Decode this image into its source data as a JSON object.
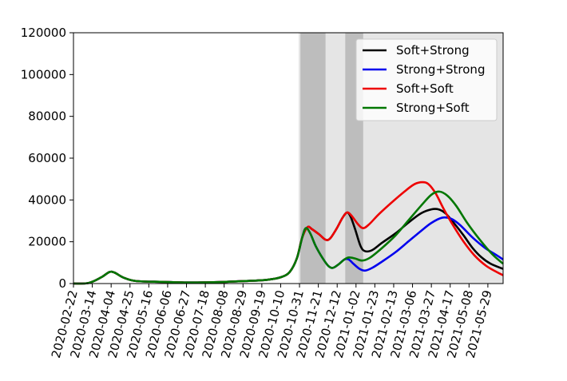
{
  "chart_data": {
    "type": "line",
    "title": "",
    "xlabel": "",
    "ylabel": "",
    "ylim": [
      0,
      120000
    ],
    "yticks": [
      0,
      20000,
      40000,
      60000,
      80000,
      100000,
      120000
    ],
    "xlim": [
      "2020-02-22",
      "2021-06-15"
    ],
    "xticks": [
      "2020-02-22",
      "2020-03-14",
      "2020-04-04",
      "2020-04-25",
      "2020-05-16",
      "2020-06-06",
      "2020-06-27",
      "2020-07-18",
      "2020-08-08",
      "2020-08-29",
      "2020-09-19",
      "2020-10-10",
      "2020-10-31",
      "2020-11-21",
      "2020-12-12",
      "2021-01-02",
      "2021-01-23",
      "2021-02-13",
      "2021-03-06",
      "2021-03-27",
      "2021-04-17",
      "2021-05-08",
      "2021-05-29"
    ],
    "grid": false,
    "legend_position": "top-right",
    "shaded_regions": [
      {
        "start": "2020-10-30",
        "end": "2021-06-15",
        "color": "#e5e5e5"
      },
      {
        "start": "2020-11-01",
        "end": "2020-11-29",
        "color": "#bdbdbd"
      },
      {
        "start": "2020-12-21",
        "end": "2021-01-10",
        "color": "#bdbdbd"
      }
    ],
    "series": [
      {
        "name": "Soft+Strong",
        "color": "#000000",
        "points": [
          [
            "2020-02-22",
            0
          ],
          [
            "2020-03-10",
            300
          ],
          [
            "2020-03-24",
            3000
          ],
          [
            "2020-04-02",
            5500
          ],
          [
            "2020-04-08",
            5200
          ],
          [
            "2020-04-18",
            2800
          ],
          [
            "2020-05-02",
            1200
          ],
          [
            "2020-06-01",
            800
          ],
          [
            "2020-07-01",
            500
          ],
          [
            "2020-08-01",
            700
          ],
          [
            "2020-09-01",
            1200
          ],
          [
            "2020-09-25",
            1800
          ],
          [
            "2020-10-10",
            3000
          ],
          [
            "2020-10-20",
            5500
          ],
          [
            "2020-10-28",
            12000
          ],
          [
            "2020-11-03",
            22000
          ],
          [
            "2020-11-09",
            27000
          ],
          [
            "2020-11-14",
            26000
          ],
          [
            "2020-11-22",
            23500
          ],
          [
            "2020-11-29",
            21000
          ],
          [
            "2020-12-04",
            21500
          ],
          [
            "2020-12-11",
            26000
          ],
          [
            "2020-12-18",
            31500
          ],
          [
            "2020-12-23",
            34000
          ],
          [
            "2020-12-27",
            32000
          ],
          [
            "2021-01-01",
            26000
          ],
          [
            "2021-01-07",
            18000
          ],
          [
            "2021-01-12",
            15500
          ],
          [
            "2021-01-20",
            16000
          ],
          [
            "2021-01-31",
            19500
          ],
          [
            "2021-02-15",
            24000
          ],
          [
            "2021-03-01",
            29000
          ],
          [
            "2021-03-15",
            33500
          ],
          [
            "2021-03-27",
            35500
          ],
          [
            "2021-04-04",
            35500
          ],
          [
            "2021-04-12",
            33500
          ],
          [
            "2021-04-22",
            28500
          ],
          [
            "2021-05-02",
            23000
          ],
          [
            "2021-05-12",
            17000
          ],
          [
            "2021-05-22",
            12500
          ],
          [
            "2021-06-01",
            9500
          ],
          [
            "2021-06-15",
            7000
          ]
        ]
      },
      {
        "name": "Strong+Strong",
        "color": "#0000ee",
        "points": [
          [
            "2020-02-22",
            0
          ],
          [
            "2020-03-10",
            300
          ],
          [
            "2020-03-24",
            3000
          ],
          [
            "2020-04-02",
            5500
          ],
          [
            "2020-04-08",
            5200
          ],
          [
            "2020-04-18",
            2800
          ],
          [
            "2020-05-02",
            1200
          ],
          [
            "2020-06-01",
            800
          ],
          [
            "2020-07-01",
            500
          ],
          [
            "2020-08-01",
            700
          ],
          [
            "2020-09-01",
            1200
          ],
          [
            "2020-09-25",
            1800
          ],
          [
            "2020-10-10",
            3000
          ],
          [
            "2020-10-20",
            5500
          ],
          [
            "2020-10-28",
            12000
          ],
          [
            "2020-11-03",
            22000
          ],
          [
            "2020-11-07",
            26500
          ],
          [
            "2020-11-12",
            24000
          ],
          [
            "2020-11-18",
            18000
          ],
          [
            "2020-11-26",
            12000
          ],
          [
            "2020-12-02",
            8500
          ],
          [
            "2020-12-07",
            7500
          ],
          [
            "2020-12-13",
            9000
          ],
          [
            "2020-12-20",
            11500
          ],
          [
            "2020-12-25",
            11500
          ],
          [
            "2020-12-30",
            9500
          ],
          [
            "2021-01-06",
            7000
          ],
          [
            "2021-01-12",
            6200
          ],
          [
            "2021-01-20",
            7500
          ],
          [
            "2021-01-31",
            10500
          ],
          [
            "2021-02-15",
            15000
          ],
          [
            "2021-03-01",
            20000
          ],
          [
            "2021-03-15",
            25000
          ],
          [
            "2021-03-27",
            29000
          ],
          [
            "2021-04-08",
            31500
          ],
          [
            "2021-04-18",
            31000
          ],
          [
            "2021-04-28",
            28000
          ],
          [
            "2021-05-12",
            22000
          ],
          [
            "2021-05-26",
            17000
          ],
          [
            "2021-06-08",
            13500
          ],
          [
            "2021-06-15",
            11500
          ]
        ]
      },
      {
        "name": "Soft+Soft",
        "color": "#ee0000",
        "points": [
          [
            "2020-02-22",
            0
          ],
          [
            "2020-03-10",
            300
          ],
          [
            "2020-03-24",
            3000
          ],
          [
            "2020-04-02",
            5500
          ],
          [
            "2020-04-08",
            5200
          ],
          [
            "2020-04-18",
            2800
          ],
          [
            "2020-05-02",
            1200
          ],
          [
            "2020-06-01",
            800
          ],
          [
            "2020-07-01",
            500
          ],
          [
            "2020-08-01",
            700
          ],
          [
            "2020-09-01",
            1200
          ],
          [
            "2020-09-25",
            1800
          ],
          [
            "2020-10-10",
            3000
          ],
          [
            "2020-10-20",
            5500
          ],
          [
            "2020-10-28",
            12000
          ],
          [
            "2020-11-03",
            22000
          ],
          [
            "2020-11-09",
            27000
          ],
          [
            "2020-11-14",
            26000
          ],
          [
            "2020-11-22",
            23500
          ],
          [
            "2020-11-29",
            21000
          ],
          [
            "2020-12-04",
            21500
          ],
          [
            "2020-12-11",
            26000
          ],
          [
            "2020-12-18",
            31500
          ],
          [
            "2020-12-23",
            34000
          ],
          [
            "2020-12-28",
            32500
          ],
          [
            "2021-01-04",
            28500
          ],
          [
            "2021-01-10",
            26500
          ],
          [
            "2021-01-17",
            28500
          ],
          [
            "2021-01-27",
            33000
          ],
          [
            "2021-02-10",
            38500
          ],
          [
            "2021-02-25",
            44000
          ],
          [
            "2021-03-08",
            47500
          ],
          [
            "2021-03-17",
            48500
          ],
          [
            "2021-03-24",
            47500
          ],
          [
            "2021-04-01",
            43000
          ],
          [
            "2021-04-10",
            35500
          ],
          [
            "2021-04-20",
            28000
          ],
          [
            "2021-05-02",
            20000
          ],
          [
            "2021-05-14",
            13500
          ],
          [
            "2021-05-27",
            8500
          ],
          [
            "2021-06-08",
            5500
          ],
          [
            "2021-06-15",
            4000
          ]
        ]
      },
      {
        "name": "Strong+Soft",
        "color": "#007700",
        "points": [
          [
            "2020-02-22",
            0
          ],
          [
            "2020-03-10",
            300
          ],
          [
            "2020-03-24",
            3000
          ],
          [
            "2020-04-02",
            5500
          ],
          [
            "2020-04-08",
            5200
          ],
          [
            "2020-04-18",
            2800
          ],
          [
            "2020-05-02",
            1200
          ],
          [
            "2020-06-01",
            800
          ],
          [
            "2020-07-01",
            500
          ],
          [
            "2020-08-01",
            700
          ],
          [
            "2020-09-01",
            1200
          ],
          [
            "2020-09-25",
            1800
          ],
          [
            "2020-10-10",
            3000
          ],
          [
            "2020-10-20",
            5500
          ],
          [
            "2020-10-28",
            12000
          ],
          [
            "2020-11-03",
            22000
          ],
          [
            "2020-11-07",
            26500
          ],
          [
            "2020-11-12",
            24000
          ],
          [
            "2020-11-18",
            18000
          ],
          [
            "2020-11-26",
            12000
          ],
          [
            "2020-12-02",
            8500
          ],
          [
            "2020-12-07",
            7500
          ],
          [
            "2020-12-13",
            9000
          ],
          [
            "2020-12-20",
            11500
          ],
          [
            "2020-12-25",
            12500
          ],
          [
            "2021-01-01",
            12000
          ],
          [
            "2021-01-09",
            11000
          ],
          [
            "2021-01-18",
            12500
          ],
          [
            "2021-01-31",
            17000
          ],
          [
            "2021-02-15",
            23000
          ],
          [
            "2021-03-01",
            30000
          ],
          [
            "2021-03-15",
            37000
          ],
          [
            "2021-03-27",
            42500
          ],
          [
            "2021-04-05",
            44000
          ],
          [
            "2021-04-14",
            42000
          ],
          [
            "2021-04-24",
            37000
          ],
          [
            "2021-05-06",
            29000
          ],
          [
            "2021-05-20",
            21000
          ],
          [
            "2021-06-03",
            14000
          ],
          [
            "2021-06-15",
            9500
          ]
        ]
      }
    ]
  }
}
